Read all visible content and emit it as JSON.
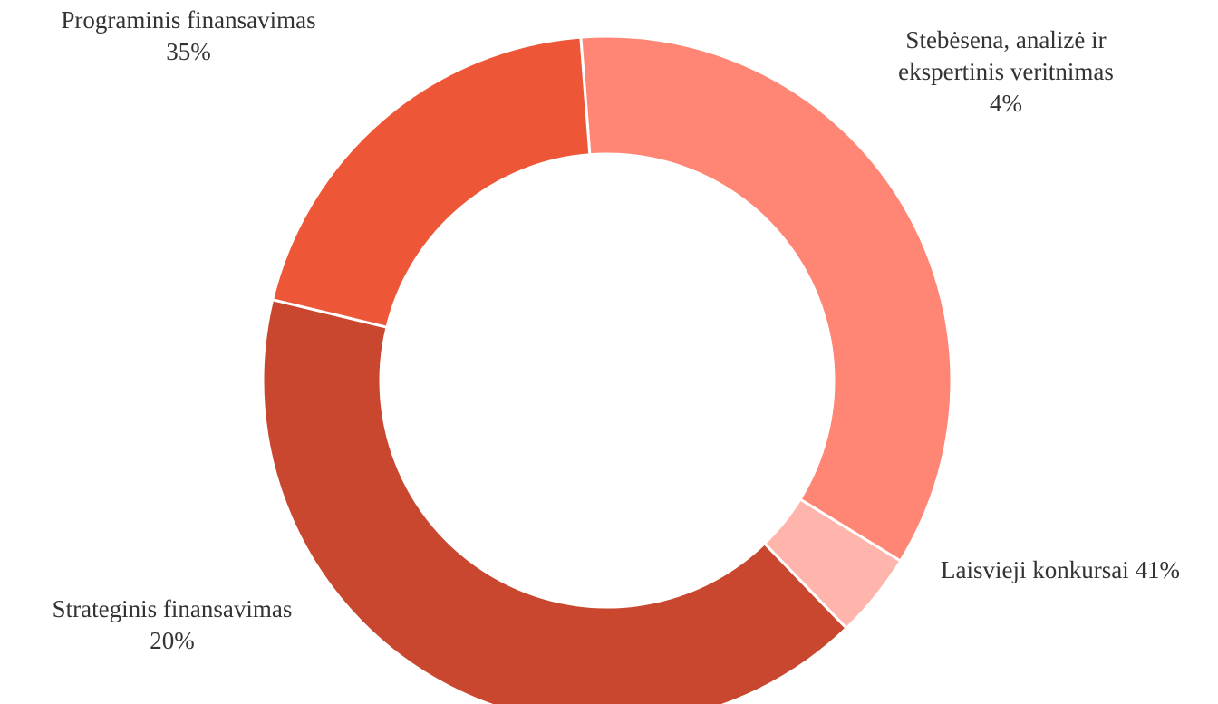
{
  "chart_data": {
    "type": "donut",
    "categories": [
      "Programinis finansavimas",
      "Stebėsena, analizė ir ekspertinis veritnimas",
      "Laisvieji konkursai",
      "Strateginis finansavimas"
    ],
    "values": [
      35,
      4,
      41,
      20
    ],
    "value_labels": [
      "35%",
      "4%",
      "41%",
      "20%"
    ],
    "colors": [
      "#ff8574",
      "#ffb4ac",
      "#c8472e",
      "#ee5638"
    ]
  }
}
